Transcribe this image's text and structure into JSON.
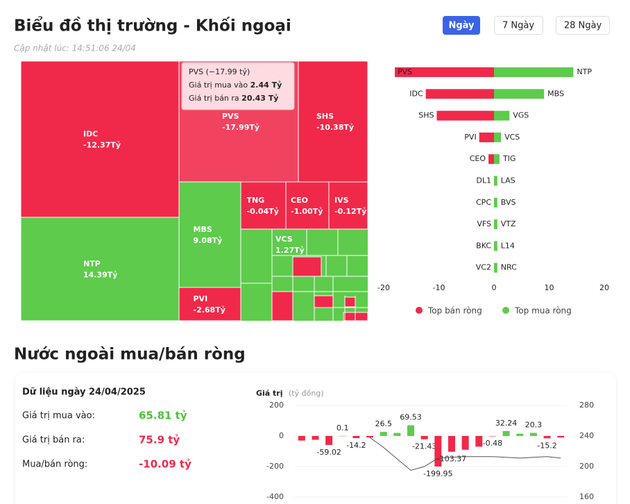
{
  "header": {
    "title": "Biểu đồ thị trường - Khối ngoại",
    "updated": "Cập nhật lúc: 14:51:06 24/04",
    "buttons": [
      "Ngày",
      "7 Ngày",
      "28 Ngày"
    ]
  },
  "tooltip": {
    "title": "PVS (−17.99 tỷ)",
    "rows": [
      {
        "label": "Giá trị mua vào",
        "value": "2.44 Tỷ"
      },
      {
        "label": "Giá trị bán ra",
        "value": "20.43 Tỷ"
      }
    ]
  },
  "section": {
    "title": "Nước ngoài mua/bán ròng",
    "date": "Dữ liệu ngày 24/04/2025",
    "rows": [
      {
        "label": "Giá trị mua vào:",
        "value": "65.81 tỷ"
      },
      {
        "label": "Giá trị bán ra:",
        "value": "75.9 tỷ"
      },
      {
        "label": "Mua/bán ròng:",
        "value": "-10.09 tỷ"
      }
    ]
  },
  "chart_data": [
    {
      "type": "treemap",
      "negative_color": "#f0294a",
      "positive_color": "#5ecb4c",
      "categories": [
        "IDC",
        "NTP",
        "PVS",
        "SHS",
        "MBS",
        "PVI",
        "TNG",
        "CEO",
        "IVS",
        "VCS"
      ],
      "values": [
        -12.37,
        14.39,
        -17.99,
        -10.38,
        9.08,
        -2.68,
        -0.04,
        -1.0,
        -0.12,
        1.27
      ],
      "value_labels": [
        "-12.37Tỷ",
        "14.39Tỷ",
        "-17.99Tỷ",
        "-10.38Tỷ",
        "9.08Tỷ",
        "-2.68Tỷ",
        "-0.04Tỷ",
        "-1.00Tỷ",
        "-0.12Tỷ",
        "1.27Tỷ"
      ]
    },
    {
      "type": "diverging_bar",
      "xlim": [
        -20,
        20
      ],
      "xticks": [
        -20,
        -10,
        0,
        10,
        20
      ],
      "legend": "bottom",
      "series": [
        {
          "name": "Top bán ròng",
          "color": "#f0294a",
          "labels": [
            "PVS",
            "IDC",
            "SHS",
            "PVI",
            "CEO",
            "DL1",
            "CPC",
            "VFS",
            "BKC",
            "VC2"
          ],
          "values": [
            -17.99,
            -12.37,
            -10.38,
            -2.68,
            -1.0,
            0,
            0,
            0,
            0,
            0
          ]
        },
        {
          "name": "Top mua ròng",
          "color": "#5ecb4c",
          "labels": [
            "NTP",
            "MBS",
            "VGS",
            "VCS",
            "TIG",
            "LAS",
            "BVS",
            "VTZ",
            "L14",
            "NRC"
          ],
          "values": [
            14.39,
            9.08,
            2.8,
            1.27,
            1.0,
            0.6,
            0.6,
            0.6,
            0.6,
            0.6
          ]
        }
      ]
    },
    {
      "type": "bar_line",
      "y_label": "Giá trị",
      "y_unit": "(tỷ đồng)",
      "ylim": [
        -400,
        200
      ],
      "yticks": [
        -400,
        -200,
        0,
        200
      ],
      "y2lim": [
        160,
        280
      ],
      "y2ticks": [
        160,
        200,
        240,
        280
      ],
      "positive_color": "#5ecb4c",
      "negative_color": "#f0294a",
      "values": [
        -30,
        -25,
        -59.02,
        0.1,
        -14.2,
        -10,
        26.5,
        20,
        69.53,
        -21.43,
        -199.95,
        -103.37,
        -90,
        -70,
        -0.48,
        32.24,
        15,
        20.3,
        -15.2,
        -10
      ],
      "value_labels": [
        null,
        null,
        "-59.02",
        "0.1",
        "-14.2",
        null,
        "26.5",
        null,
        "69.53",
        "-21.43",
        "-199.95",
        "-103.37",
        null,
        null,
        "-0.48",
        "32.24",
        null,
        "20.3",
        "-15.2",
        null
      ],
      "line": {
        "color": "#555555",
        "axis": "y2",
        "values": [
          null,
          null,
          null,
          null,
          null,
          238,
          225,
          210,
          195,
          200,
          211,
          212,
          213,
          213,
          213,
          212,
          211,
          212,
          213,
          211
        ]
      }
    }
  ]
}
